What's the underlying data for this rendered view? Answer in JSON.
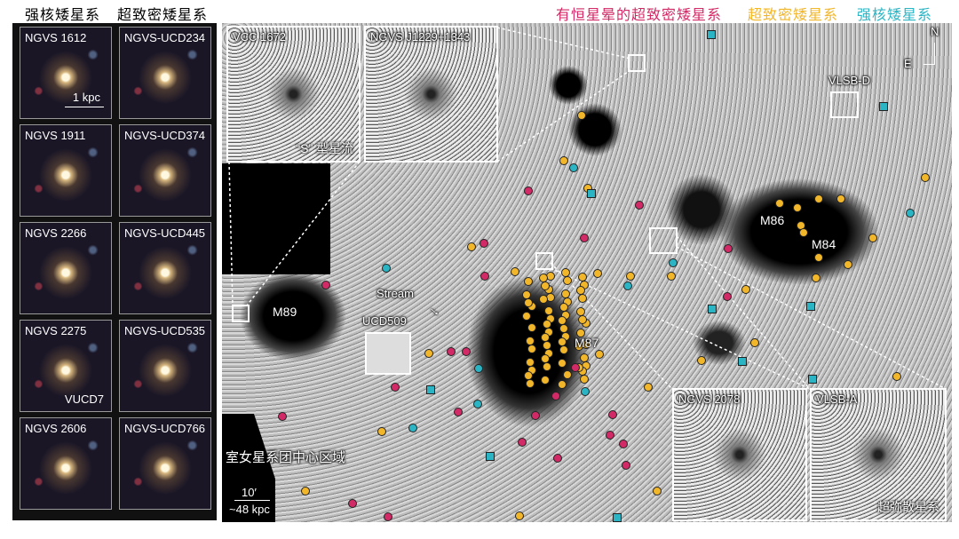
{
  "left_headers": {
    "col1": "强核矮星系",
    "col2": "超致密矮星系"
  },
  "legend": [
    {
      "label": "有恒星晕的超致密矮星系",
      "color": "#d22a66",
      "shape": "circle"
    },
    {
      "label": "超致密矮星系",
      "color": "#f2b62a",
      "shape": "circle"
    },
    {
      "label": "强核矮星系",
      "color": "#2bb5c4",
      "shape": "square"
    }
  ],
  "thumbnails": [
    {
      "label": "NGVS 1612",
      "scale": "1 kpc"
    },
    {
      "label": "NGVS-UCD234"
    },
    {
      "label": "NGVS 1911"
    },
    {
      "label": "NGVS-UCD374"
    },
    {
      "label": "NGVS 2266"
    },
    {
      "label": "NGVS-UCD445"
    },
    {
      "label": "NGVS 2275",
      "sub": "VUCD7"
    },
    {
      "label": "NGVS-UCD535"
    },
    {
      "label": "NGVS 2606"
    },
    {
      "label": "NGVS-UCD766"
    }
  ],
  "insets": [
    {
      "label": "VCC 1672",
      "sub": "“S” 型星流"
    },
    {
      "label": "NGVS J1229+1343"
    },
    {
      "label": "NGVS 2078"
    },
    {
      "label": "VLSB-A",
      "sub": "超弥散星系"
    }
  ],
  "map_labels": {
    "m89": "M89",
    "m87": "M87",
    "m86": "M86",
    "m84": "M84",
    "stream": "Stream",
    "ucd509": "UCD509",
    "vlsb_d": "VLSB-D",
    "region": "室女星系团中心区域",
    "compass_n": "N",
    "compass_e": "E",
    "scale_angle": "10′",
    "scale_kpc": "~48 kpc"
  }
}
